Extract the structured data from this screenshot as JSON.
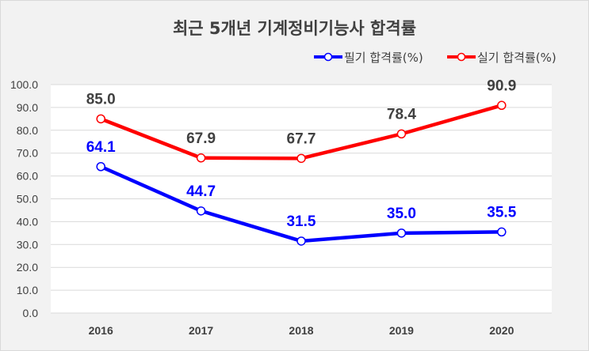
{
  "chart_data": {
    "type": "line",
    "title": "최근 5개년 기계정비기능사 합격률",
    "categories": [
      "2016",
      "2017",
      "2018",
      "2019",
      "2020"
    ],
    "ylim": [
      0,
      100
    ],
    "yticks": [
      "0.0",
      "10.0",
      "20.0",
      "30.0",
      "40.0",
      "50.0",
      "60.0",
      "70.0",
      "80.0",
      "90.0",
      "100.0"
    ],
    "grid": true,
    "legend_position": "top-right",
    "series": [
      {
        "name": "필기 합격률(%)",
        "color": "#0000ff",
        "values": [
          64.1,
          44.7,
          31.5,
          35.0,
          35.5
        ],
        "labels": [
          "64.1",
          "44.7",
          "31.5",
          "35.0",
          "35.5"
        ]
      },
      {
        "name": "실기 합격률(%)",
        "color": "#ff0000",
        "values": [
          85.0,
          67.9,
          67.7,
          78.4,
          90.9
        ],
        "labels": [
          "85.0",
          "67.9",
          "67.7",
          "78.4",
          "90.9"
        ]
      }
    ]
  },
  "style": {
    "label_color_series_0": "#0000ff",
    "label_color_series_1": "#404040",
    "plot_background": "#ffffff",
    "frame_background": "#f2f2f2",
    "grid_color": "#d9d9d9"
  }
}
